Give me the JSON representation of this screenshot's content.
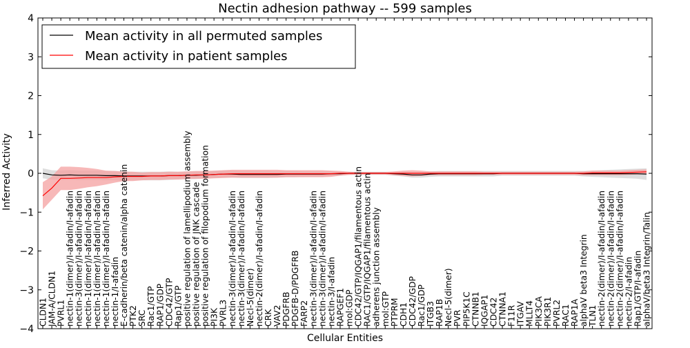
{
  "chart_data": {
    "type": "line",
    "title": "Nectin adhesion pathway -- 599 samples",
    "xlabel": "Cellular Entities",
    "ylabel": "Inferred Activity",
    "ylim": [
      -4,
      4
    ],
    "yticks": [
      -4,
      -3,
      -2,
      -1,
      0,
      1,
      2,
      3,
      4
    ],
    "ytick_labels": [
      "−4",
      "−3",
      "−2",
      "−1",
      "0",
      "1",
      "2",
      "3",
      "4"
    ],
    "grid": false,
    "legend_position": "top-left",
    "categories": [
      "CLDN1",
      "JAM-A/CLDN1",
      "PVRL1",
      "nectin-1(dimer)/I-afadin/I-afadin",
      "nectin-3(dimer)/I-afadin/I-afadin",
      "nectin-1(dimer)/I-afadin/I-afadin",
      "nectin-1(dimer)/I-afadin/I-afadin",
      "nectin-1(dimer)/I-afadin/I-afadin",
      "nectin-1/I-afadin",
      "E-cadherin/beta catenin/alpha catenin",
      "PTK2",
      "SRC",
      "Rac1/GTP",
      "RAP1/GDP",
      "CDC42/GTP",
      "Rap1/GTP",
      "positive regulation of lamellipodium assembly",
      "positive regulation of JNK cascade",
      "positive regulation of filopodium formation",
      "PI3K",
      "PVRL3",
      "nectin-3(dimer)/I-afadin/I-afadin",
      "nectin-3(dimer)/I-afadin/I-afadin",
      "Necl-5(dimer)",
      "nectin-2(dimer)/I-afadin/I-afadin",
      "CRK",
      "VAV2",
      "PDGFRB",
      "PDGFB-D/PDGFRB",
      "FARP2",
      "nectin-3(dimer)/I-afadin/I-afadin",
      "nectin-3(dimer)/I-afadin/I-afadin",
      "nectin-3/I-afadin",
      "RAPGEF1",
      "mol:GDP",
      "CDC42/GTP/IQGAP1/filamentous actin",
      "RAC1/GTP/IQGAP1/filamentous actin",
      "adherens junction assembly",
      "mol:GTP",
      "PTPRM",
      "CDH1",
      "CDC42/GDP",
      "Rac1/GDP",
      "ITGB3",
      "RAP1B",
      "Necl-5(dimer)",
      "PVR",
      "PIP5K1C",
      "CTNNB1",
      "IQGAP1",
      "CDC42",
      "CTNNA1",
      "F11R",
      "ITGAV",
      "MLLT4",
      "PIK3CA",
      "PIK3R1",
      "PVRL2",
      "RAC1",
      "RAP1A",
      "alphaV beta3 Integrin",
      "TLN1",
      "nectin-2(dimer)/I-afadin/I-afadin",
      "nectin-2(dimer)/I-afadin/I-afadin",
      "nectin-2(dimer)/I-afadin/I-afadin",
      "nectin-2/I-afadin",
      "Rap1/GTP/I-afadin",
      "alphaV/beta3 Integrin/Talin"
    ],
    "series": [
      {
        "name": "Mean activity in all permuted samples",
        "color": "#000000",
        "band_color": "#d8d8d8",
        "values": [
          0.0,
          -0.04,
          -0.05,
          -0.04,
          -0.05,
          -0.05,
          -0.05,
          -0.06,
          -0.06,
          -0.07,
          -0.07,
          -0.07,
          -0.07,
          -0.07,
          -0.06,
          -0.06,
          -0.05,
          -0.05,
          -0.04,
          -0.03,
          -0.02,
          -0.02,
          -0.03,
          -0.03,
          -0.03,
          -0.03,
          -0.03,
          -0.02,
          -0.02,
          -0.02,
          -0.02,
          -0.02,
          -0.01,
          -0.01,
          0.0,
          0.0,
          0.0,
          0.0,
          0.0,
          -0.01,
          -0.02,
          -0.04,
          -0.04,
          -0.02,
          -0.01,
          -0.01,
          -0.01,
          -0.01,
          -0.01,
          -0.01,
          -0.01,
          0.0,
          0.0,
          0.0,
          0.0,
          0.0,
          0.0,
          0.0,
          0.0,
          0.0,
          -0.01,
          -0.01,
          -0.01,
          -0.01,
          -0.01,
          -0.01,
          -0.01,
          -0.02
        ],
        "band_half_width": [
          0.13,
          0.12,
          0.12,
          0.12,
          0.12,
          0.12,
          0.12,
          0.12,
          0.12,
          0.12,
          0.11,
          0.11,
          0.11,
          0.11,
          0.11,
          0.1,
          0.1,
          0.1,
          0.09,
          0.09,
          0.09,
          0.09,
          0.09,
          0.09,
          0.09,
          0.09,
          0.08,
          0.08,
          0.08,
          0.07,
          0.07,
          0.07,
          0.06,
          0.05,
          0.04,
          0.04,
          0.04,
          0.04,
          0.04,
          0.05,
          0.06,
          0.07,
          0.07,
          0.07,
          0.07,
          0.07,
          0.07,
          0.07,
          0.07,
          0.07,
          0.07,
          0.06,
          0.06,
          0.06,
          0.06,
          0.06,
          0.06,
          0.06,
          0.06,
          0.06,
          0.07,
          0.08,
          0.09,
          0.1,
          0.11,
          0.12,
          0.13,
          0.15
        ]
      },
      {
        "name": "Mean activity in patient samples",
        "color": "#ff0000",
        "band_color": "#f4a0a0",
        "values": [
          -0.58,
          -0.38,
          -0.13,
          -0.13,
          -0.12,
          -0.11,
          -0.11,
          -0.11,
          -0.09,
          -0.08,
          -0.08,
          -0.08,
          -0.07,
          -0.07,
          -0.06,
          -0.06,
          -0.05,
          -0.04,
          -0.04,
          -0.03,
          -0.02,
          -0.01,
          -0.01,
          -0.01,
          -0.01,
          -0.01,
          -0.01,
          -0.01,
          -0.01,
          -0.01,
          -0.01,
          -0.01,
          -0.01,
          0.0,
          0.0,
          0.0,
          0.0,
          0.0,
          0.0,
          0.0,
          0.0,
          0.0,
          0.0,
          0.0,
          0.0,
          0.0,
          0.0,
          0.0,
          0.0,
          0.0,
          0.0,
          0.0,
          0.0,
          0.0,
          0.0,
          0.0,
          0.0,
          0.0,
          0.0,
          0.0,
          0.0,
          0.01,
          0.01,
          0.01,
          0.01,
          0.02,
          0.03,
          0.04
        ],
        "band_half_width": [
          0.35,
          0.3,
          0.3,
          0.3,
          0.28,
          0.25,
          0.22,
          0.18,
          0.15,
          0.12,
          0.12,
          0.1,
          0.1,
          0.1,
          0.1,
          0.1,
          0.1,
          0.1,
          0.1,
          0.1,
          0.1,
          0.1,
          0.1,
          0.1,
          0.1,
          0.1,
          0.1,
          0.09,
          0.09,
          0.09,
          0.09,
          0.09,
          0.08,
          0.06,
          0.04,
          0.03,
          0.03,
          0.03,
          0.03,
          0.05,
          0.07,
          0.08,
          0.07,
          0.05,
          0.05,
          0.05,
          0.05,
          0.05,
          0.05,
          0.04,
          0.04,
          0.04,
          0.04,
          0.04,
          0.04,
          0.04,
          0.04,
          0.04,
          0.04,
          0.04,
          0.05,
          0.06,
          0.06,
          0.06,
          0.06,
          0.06,
          0.06,
          0.06
        ]
      }
    ]
  }
}
